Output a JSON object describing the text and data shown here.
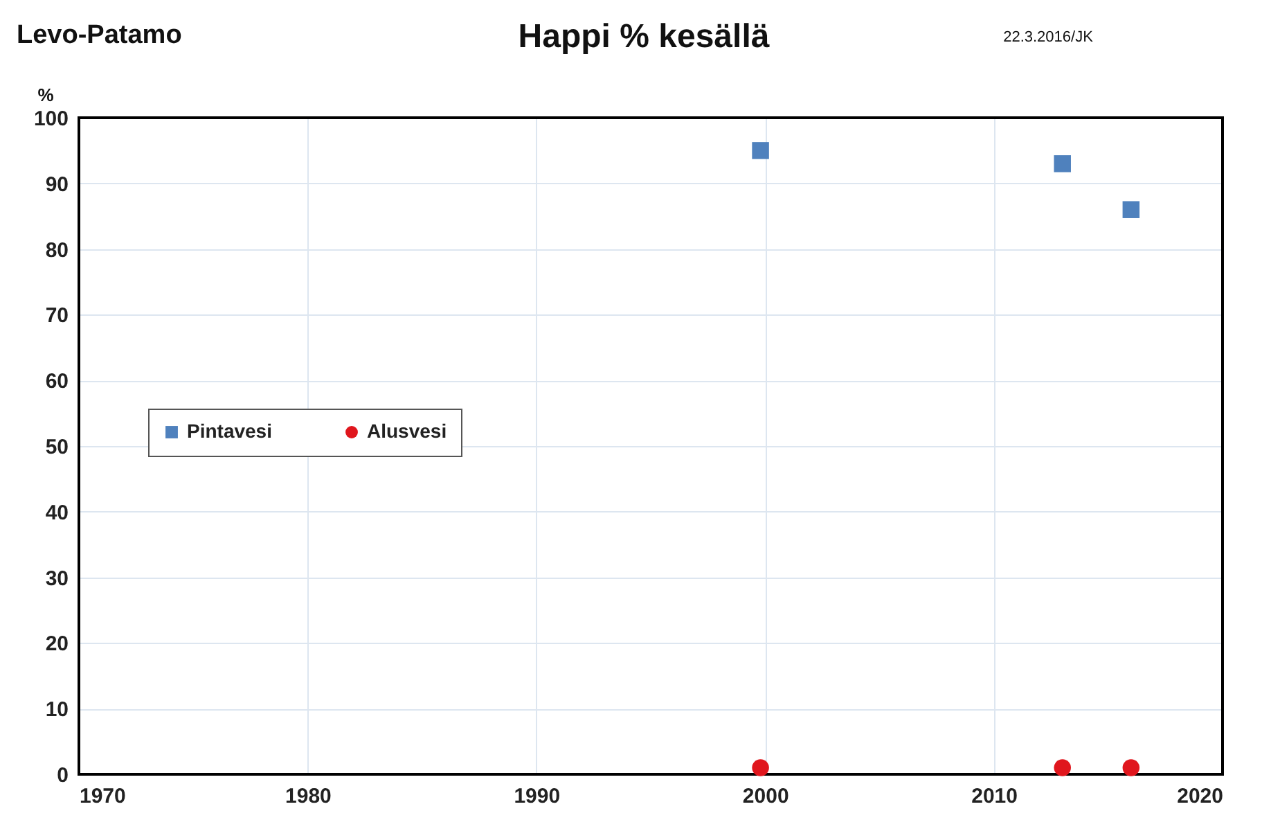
{
  "chart_data": {
    "type": "scatter",
    "title": "Happi % kesällä",
    "subtitle": "Levo-Patamo",
    "annotations": [
      "22.3.2016/JK"
    ],
    "ylabel": "%",
    "x": [
      1999.8,
      2013,
      2016
    ],
    "series": [
      {
        "name": "Pintavesi",
        "color": "#4f81bd",
        "marker": "square",
        "values": [
          95,
          93,
          86
        ]
      },
      {
        "name": "Alusvesi",
        "color": "#e0161d",
        "marker": "circle",
        "values": [
          1,
          1,
          1
        ]
      }
    ],
    "xlim": [
      1970,
      2020
    ],
    "xticks": [
      1970,
      1980,
      1990,
      2000,
      2010,
      2020
    ],
    "ylim": [
      0,
      100
    ],
    "yticks": [
      0,
      10,
      20,
      30,
      40,
      50,
      60,
      70,
      80,
      90,
      100
    ],
    "grid": true,
    "legend": "left"
  }
}
